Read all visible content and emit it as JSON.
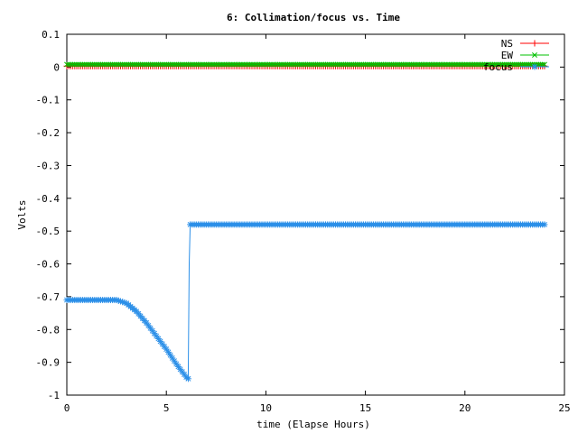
{
  "chart_data": {
    "type": "line",
    "title": "6: Collimation/focus vs. Time",
    "xlabel": "time (Elapse Hours)",
    "ylabel": "Volts",
    "xlim": [
      0,
      25
    ],
    "ylim": [
      -1,
      0.1
    ],
    "x_ticks": [
      0,
      5,
      10,
      15,
      20,
      25
    ],
    "x_tick_labels": [
      "0",
      "5",
      "10",
      "15",
      "20",
      "25"
    ],
    "y_ticks": [
      0.1,
      0,
      -0.1,
      -0.2,
      -0.3,
      -0.4,
      -0.5,
      -0.6,
      -0.7,
      -0.8,
      -0.9,
      -1
    ],
    "y_tick_labels": [
      "0.1",
      "0",
      "-0.1",
      "-0.2",
      "-0.3",
      "-0.4",
      "-0.5",
      "-0.6",
      "-0.7",
      "-0.8",
      "-0.9",
      "-1"
    ],
    "grid": false,
    "legend_position": "top-right",
    "x_range": [
      0,
      24
    ],
    "x_step": 0.1,
    "series": [
      {
        "name": "NS",
        "color": "#ff0000",
        "marker": "plus",
        "segments": [
          {
            "x_start": 0,
            "x_end": 24,
            "y": 0.003
          }
        ]
      },
      {
        "name": "EW",
        "color": "#00c000",
        "marker": "x",
        "segments": [
          {
            "x_start": 0,
            "x_end": 24,
            "y": 0.008
          }
        ]
      },
      {
        "name": "focus",
        "color": "#2b8fe8",
        "marker": "asterisk",
        "segments": [
          {
            "x_start": 0,
            "x_end": 2.5,
            "y": -0.71
          },
          {
            "x_start": 2.6,
            "x_end": 6.1,
            "curve": [
              [
                2.5,
                -0.71
              ],
              [
                3.0,
                -0.72
              ],
              [
                3.5,
                -0.745
              ],
              [
                4.0,
                -0.78
              ],
              [
                4.5,
                -0.82
              ],
              [
                5.0,
                -0.86
              ],
              [
                5.5,
                -0.905
              ],
              [
                6.0,
                -0.945
              ],
              [
                6.1,
                -0.95
              ]
            ]
          },
          {
            "x_start": 6.2,
            "x_end": 24,
            "y": -0.48
          }
        ],
        "jumps": [
          [
            6.1,
            -0.95
          ],
          [
            6.15,
            -0.6
          ],
          [
            6.2,
            -0.48
          ]
        ]
      }
    ]
  }
}
